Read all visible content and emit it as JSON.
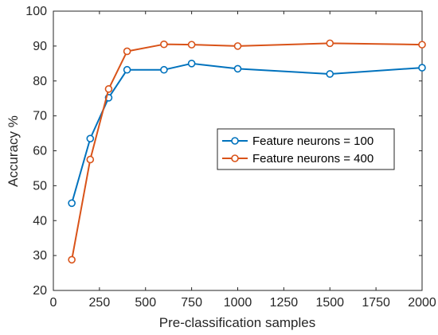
{
  "chart_data": {
    "type": "line",
    "title": "",
    "xlabel": "Pre-classification samples",
    "ylabel": "Accuracy %",
    "xlim": [
      0,
      2000
    ],
    "ylim": [
      20,
      100
    ],
    "xticks": [
      0,
      250,
      500,
      750,
      1000,
      1250,
      1500,
      1750,
      2000
    ],
    "yticks": [
      20,
      30,
      40,
      50,
      60,
      70,
      80,
      90,
      100
    ],
    "grid": false,
    "legend_position": "right-middle",
    "marker": "open-circle",
    "series": [
      {
        "name": "Feature neurons = 100",
        "color": "#0072BD",
        "x": [
          100,
          200,
          300,
          400,
          600,
          750,
          1000,
          1500,
          2000
        ],
        "y": [
          45,
          63.5,
          75.2,
          83.2,
          83.2,
          85,
          83.5,
          82,
          83.8
        ]
      },
      {
        "name": "Feature neurons = 400",
        "color": "#D95319",
        "x": [
          100,
          200,
          300,
          400,
          600,
          750,
          1000,
          1500,
          2000
        ],
        "y": [
          28.8,
          57.5,
          77.7,
          88.5,
          90.5,
          90.4,
          90,
          90.8,
          90.4
        ]
      }
    ]
  }
}
